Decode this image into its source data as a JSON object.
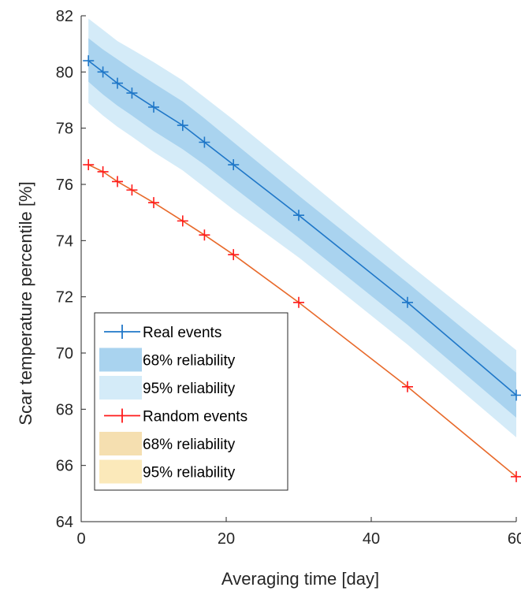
{
  "chart_data": {
    "type": "line",
    "xlabel": "Averaging time [day]",
    "ylabel": "Scar temperature percentile [%]",
    "xlim": [
      0,
      60
    ],
    "ylim": [
      64,
      82
    ],
    "x_ticks": [
      "0",
      "20",
      "40",
      "60"
    ],
    "y_ticks": [
      "64",
      "66",
      "68",
      "70",
      "72",
      "74",
      "76",
      "78",
      "80",
      "82"
    ],
    "grid": false,
    "legend_position": "bottom-left",
    "legend_entries": [
      "Real events",
      "68% reliability",
      "95% reliability",
      "Random events",
      "68% reliability",
      "95% reliability"
    ],
    "x": [
      1,
      3,
      5,
      7,
      10,
      14,
      17,
      21,
      30,
      45,
      60
    ],
    "series": [
      {
        "name": "Real events",
        "color": "#1f77c8",
        "values": [
          80.4,
          80.0,
          79.6,
          79.25,
          78.75,
          78.1,
          77.5,
          76.7,
          74.9,
          71.8,
          68.5
        ],
        "band68": {
          "color": "#a9d3ef",
          "upper": [
            81.2,
            80.8,
            80.45,
            80.1,
            79.6,
            78.95,
            78.35,
            77.5,
            75.6,
            72.5,
            69.3
          ],
          "lower": [
            79.65,
            79.2,
            78.8,
            78.45,
            77.9,
            77.25,
            76.7,
            75.9,
            74.1,
            71.0,
            67.7
          ]
        },
        "band95": {
          "color": "#d4ebf8",
          "upper": [
            81.9,
            81.5,
            81.1,
            80.8,
            80.35,
            79.7,
            79.1,
            78.3,
            76.4,
            73.2,
            70.1
          ],
          "lower": [
            78.9,
            78.45,
            78.05,
            77.7,
            77.15,
            76.5,
            75.9,
            75.1,
            73.4,
            70.3,
            67.0
          ]
        }
      },
      {
        "name": "Random events",
        "color": "#ff1a1a",
        "line_color": "#e8692a",
        "values": [
          76.7,
          76.45,
          76.1,
          75.8,
          75.35,
          74.7,
          74.2,
          73.5,
          71.8,
          68.8,
          65.6
        ],
        "band68": {
          "color": "#f5dfb0"
        },
        "band95": {
          "color": "#fbe9ba"
        }
      }
    ]
  }
}
